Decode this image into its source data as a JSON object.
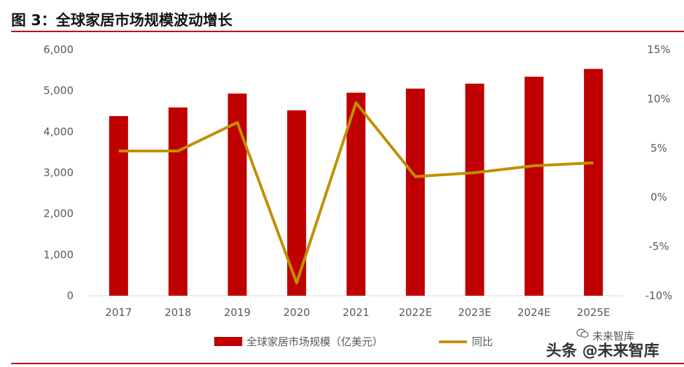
{
  "header": {
    "title": "图 3：全球家居市场规模波动增长"
  },
  "watermark": {
    "line1": "未来智库",
    "line2": "头条 @未来智库"
  },
  "colors": {
    "bar": "#c00000",
    "line": "#bf9000",
    "rule": "#c00000",
    "axis": "#d9d9d9",
    "text": "#595959"
  },
  "chart_data": {
    "type": "bar",
    "categories": [
      "2017",
      "2018",
      "2019",
      "2020",
      "2021",
      "2022E",
      "2023E",
      "2024E",
      "2025E"
    ],
    "series": [
      {
        "name": "全球家居市场规模（亿美元）",
        "type": "bar",
        "axis": "left",
        "values": [
          4380,
          4590,
          4930,
          4520,
          4950,
          5050,
          5170,
          5340,
          5530
        ]
      },
      {
        "name": "同比",
        "type": "line",
        "axis": "right",
        "values": [
          4.7,
          4.7,
          7.6,
          -8.7,
          9.6,
          2.1,
          2.5,
          3.2,
          3.5
        ]
      }
    ],
    "y_left": {
      "min": 0,
      "max": 6000,
      "ticks": [
        "0",
        "1,000",
        "2,000",
        "3,000",
        "4,000",
        "5,000",
        "6,000"
      ]
    },
    "y_right": {
      "min": -10,
      "max": 15,
      "ticks": [
        "-10%",
        "-5%",
        "0%",
        "5%",
        "10%",
        "15%"
      ]
    },
    "legend": {
      "position": "bottom"
    },
    "grid": false
  }
}
